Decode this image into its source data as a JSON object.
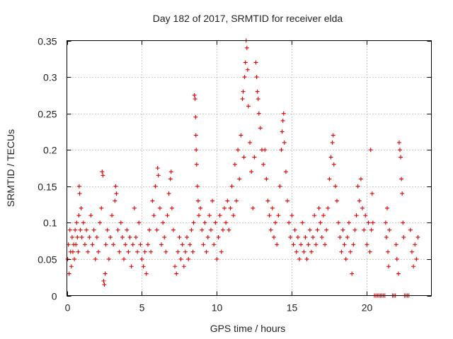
{
  "chart_data": {
    "type": "scatter",
    "title": "Day 182 of 2017, SRMTID for receiver elda",
    "xlabel": "GPS time / hours",
    "ylabel": "SRMTID / TECUs",
    "xlim": [
      0,
      24.3
    ],
    "ylim": [
      0,
      0.35
    ],
    "x_ticks": [
      0,
      5,
      10,
      15,
      20
    ],
    "x_tick_labels": [
      "0",
      "5",
      "10",
      "15",
      "20"
    ],
    "y_ticks": [
      0,
      0.05,
      0.1,
      0.15,
      0.2,
      0.25,
      0.3,
      0.35
    ],
    "y_tick_labels": [
      "0",
      "0.05",
      "0.1",
      "0.15",
      "0.2",
      "0.25",
      "0.3",
      "0.35"
    ],
    "grid": true,
    "marker": "+",
    "series_color": "#e00000",
    "series": [
      {
        "name": "SRMTID",
        "points": [
          [
            0.05,
            0.05
          ],
          [
            0.1,
            0.07
          ],
          [
            0.15,
            0.03
          ],
          [
            0.2,
            0.09
          ],
          [
            0.25,
            0.06
          ],
          [
            0.3,
            0.04
          ],
          [
            0.35,
            0.08
          ],
          [
            0.4,
            0.06
          ],
          [
            0.45,
            0.07
          ],
          [
            0.5,
            0.05
          ],
          [
            0.55,
            0.09
          ],
          [
            0.6,
            0.07
          ],
          [
            0.65,
            0.1
          ],
          [
            0.7,
            0.08
          ],
          [
            0.75,
            0.06
          ],
          [
            0.8,
            0.11
          ],
          [
            0.82,
            0.15
          ],
          [
            0.85,
            0.14
          ],
          [
            0.9,
            0.09
          ],
          [
            0.95,
            0.12
          ],
          [
            1.0,
            0.08
          ],
          [
            1.1,
            0.1
          ],
          [
            1.2,
            0.07
          ],
          [
            1.3,
            0.09
          ],
          [
            1.4,
            0.06
          ],
          [
            1.5,
            0.08
          ],
          [
            1.6,
            0.11
          ],
          [
            1.7,
            0.07
          ],
          [
            1.8,
            0.09
          ],
          [
            1.9,
            0.05
          ],
          [
            2.0,
            0.08
          ],
          [
            2.1,
            0.06
          ],
          [
            2.2,
            0.1
          ],
          [
            2.3,
            0.12
          ],
          [
            2.35,
            0.17
          ],
          [
            2.4,
            0.165
          ],
          [
            2.45,
            0.02
          ],
          [
            2.5,
            0.015
          ],
          [
            2.55,
            0.03
          ],
          [
            2.6,
            0.07
          ],
          [
            2.7,
            0.09
          ],
          [
            2.8,
            0.05
          ],
          [
            2.9,
            0.08
          ],
          [
            3.0,
            0.11
          ],
          [
            3.1,
            0.07
          ],
          [
            3.2,
            0.13
          ],
          [
            3.25,
            0.15
          ],
          [
            3.3,
            0.14
          ],
          [
            3.4,
            0.09
          ],
          [
            3.5,
            0.06
          ],
          [
            3.6,
            0.1
          ],
          [
            3.7,
            0.08
          ],
          [
            3.8,
            0.05
          ],
          [
            3.9,
            0.07
          ],
          [
            4.0,
            0.09
          ],
          [
            4.1,
            0.06
          ],
          [
            4.2,
            0.08
          ],
          [
            4.3,
            0.04
          ],
          [
            4.4,
            0.07
          ],
          [
            4.5,
            0.12
          ],
          [
            4.6,
            0.08
          ],
          [
            4.7,
            0.06
          ],
          [
            4.8,
            0.1
          ],
          [
            4.9,
            0.07
          ],
          [
            5.0,
            0.05
          ],
          [
            5.1,
            0.04
          ],
          [
            5.2,
            0.06
          ],
          [
            5.3,
            0.03
          ],
          [
            5.4,
            0.07
          ],
          [
            5.5,
            0.09
          ],
          [
            5.6,
            0.06
          ],
          [
            5.7,
            0.13
          ],
          [
            5.8,
            0.11
          ],
          [
            5.9,
            0.15
          ],
          [
            6.0,
            0.09
          ],
          [
            6.05,
            0.175
          ],
          [
            6.1,
            0.165
          ],
          [
            6.2,
            0.12
          ],
          [
            6.3,
            0.07
          ],
          [
            6.4,
            0.1
          ],
          [
            6.5,
            0.08
          ],
          [
            6.6,
            0.06
          ],
          [
            6.7,
            0.11
          ],
          [
            6.8,
            0.14
          ],
          [
            6.9,
            0.16
          ],
          [
            6.95,
            0.17
          ],
          [
            7.0,
            0.12
          ],
          [
            7.1,
            0.09
          ],
          [
            7.2,
            0.04
          ],
          [
            7.3,
            0.03
          ],
          [
            7.4,
            0.06
          ],
          [
            7.5,
            0.08
          ],
          [
            7.6,
            0.05
          ],
          [
            7.7,
            0.07
          ],
          [
            7.8,
            0.04
          ],
          [
            7.9,
            0.06
          ],
          [
            8.0,
            0.08
          ],
          [
            8.1,
            0.05
          ],
          [
            8.2,
            0.07
          ],
          [
            8.3,
            0.09
          ],
          [
            8.4,
            0.06
          ],
          [
            8.45,
            0.1
          ],
          [
            8.5,
            0.275
          ],
          [
            8.55,
            0.27
          ],
          [
            8.58,
            0.245
          ],
          [
            8.6,
            0.22
          ],
          [
            8.62,
            0.2
          ],
          [
            8.65,
            0.18
          ],
          [
            8.7,
            0.15
          ],
          [
            8.75,
            0.13
          ],
          [
            8.8,
            0.11
          ],
          [
            8.9,
            0.12
          ],
          [
            9.0,
            0.09
          ],
          [
            9.1,
            0.07
          ],
          [
            9.2,
            0.1
          ],
          [
            9.3,
            0.06
          ],
          [
            9.4,
            0.08
          ],
          [
            9.5,
            0.11
          ],
          [
            9.6,
            0.09
          ],
          [
            9.7,
            0.13
          ],
          [
            9.8,
            0.07
          ],
          [
            9.9,
            0.1
          ],
          [
            10.0,
            0.05
          ],
          [
            10.1,
            0.08
          ],
          [
            10.2,
            0.11
          ],
          [
            10.3,
            0.06
          ],
          [
            10.4,
            0.09
          ],
          [
            10.5,
            0.12
          ],
          [
            10.6,
            0.1
          ],
          [
            10.7,
            0.13
          ],
          [
            10.8,
            0.09
          ],
          [
            10.9,
            0.12
          ],
          [
            11.0,
            0.15
          ],
          [
            11.1,
            0.11
          ],
          [
            11.2,
            0.18
          ],
          [
            11.3,
            0.13
          ],
          [
            11.4,
            0.2
          ],
          [
            11.5,
            0.16
          ],
          [
            11.6,
            0.22
          ],
          [
            11.7,
            0.27
          ],
          [
            11.75,
            0.28
          ],
          [
            11.8,
            0.19
          ],
          [
            11.85,
            0.3
          ],
          [
            11.9,
            0.32
          ],
          [
            11.95,
            0.35
          ],
          [
            12.0,
            0.34
          ],
          [
            12.05,
            0.31
          ],
          [
            12.1,
            0.26
          ],
          [
            12.2,
            0.21
          ],
          [
            12.3,
            0.17
          ],
          [
            12.4,
            0.12
          ],
          [
            12.5,
            0.19
          ],
          [
            12.6,
            0.32
          ],
          [
            12.65,
            0.3
          ],
          [
            12.7,
            0.28
          ],
          [
            12.75,
            0.27
          ],
          [
            12.8,
            0.25
          ],
          [
            12.9,
            0.23
          ],
          [
            13.0,
            0.2
          ],
          [
            13.1,
            0.18
          ],
          [
            13.2,
            0.2
          ],
          [
            13.3,
            0.16
          ],
          [
            13.4,
            0.13
          ],
          [
            13.5,
            0.11
          ],
          [
            13.6,
            0.09
          ],
          [
            13.7,
            0.12
          ],
          [
            13.8,
            0.08
          ],
          [
            13.9,
            0.1
          ],
          [
            14.0,
            0.07
          ],
          [
            14.1,
            0.11
          ],
          [
            14.2,
            0.15
          ],
          [
            14.3,
            0.2
          ],
          [
            14.35,
            0.225
          ],
          [
            14.4,
            0.24
          ],
          [
            14.45,
            0.25
          ],
          [
            14.5,
            0.21
          ],
          [
            14.6,
            0.17
          ],
          [
            14.7,
            0.13
          ],
          [
            14.8,
            0.1
          ],
          [
            14.9,
            0.08
          ],
          [
            15.0,
            0.11
          ],
          [
            15.1,
            0.07
          ],
          [
            15.2,
            0.09
          ],
          [
            15.3,
            0.06
          ],
          [
            15.4,
            0.08
          ],
          [
            15.5,
            0.05
          ],
          [
            15.6,
            0.07
          ],
          [
            15.7,
            0.1
          ],
          [
            15.8,
            0.06
          ],
          [
            15.9,
            0.08
          ],
          [
            16.0,
            0.05
          ],
          [
            16.1,
            0.07
          ],
          [
            16.2,
            0.09
          ],
          [
            16.3,
            0.06
          ],
          [
            16.4,
            0.08
          ],
          [
            16.5,
            0.11
          ],
          [
            16.6,
            0.07
          ],
          [
            16.7,
            0.09
          ],
          [
            16.8,
            0.12
          ],
          [
            16.9,
            0.1
          ],
          [
            17.0,
            0.08
          ],
          [
            17.1,
            0.11
          ],
          [
            17.2,
            0.07
          ],
          [
            17.3,
            0.09
          ],
          [
            17.4,
            0.12
          ],
          [
            17.5,
            0.16
          ],
          [
            17.6,
            0.19
          ],
          [
            17.7,
            0.21
          ],
          [
            17.75,
            0.22
          ],
          [
            17.8,
            0.18
          ],
          [
            17.9,
            0.15
          ],
          [
            18.0,
            0.13
          ],
          [
            18.1,
            0.1
          ],
          [
            18.2,
            0.08
          ],
          [
            18.3,
            0.06
          ],
          [
            18.4,
            0.09
          ],
          [
            18.5,
            0.07
          ],
          [
            18.6,
            0.05
          ],
          [
            18.7,
            0.08
          ],
          [
            18.8,
            0.1
          ],
          [
            18.9,
            0.06
          ],
          [
            19.0,
            0.03
          ],
          [
            19.1,
            0.07
          ],
          [
            19.2,
            0.09
          ],
          [
            19.3,
            0.11
          ],
          [
            19.4,
            0.15
          ],
          [
            19.5,
            0.13
          ],
          [
            19.6,
            0.16
          ],
          [
            19.7,
            0.12
          ],
          [
            19.8,
            0.09
          ],
          [
            19.9,
            0.11
          ],
          [
            20.0,
            0.07
          ],
          [
            20.1,
            0.1
          ],
          [
            20.2,
            0.06
          ],
          [
            20.25,
            0.2
          ],
          [
            20.3,
            0.09
          ],
          [
            20.35,
            0.14
          ],
          [
            20.4,
            0.1
          ],
          [
            20.5,
            0.0
          ],
          [
            20.6,
            0.0
          ],
          [
            20.7,
            0.0
          ],
          [
            20.8,
            0.0
          ],
          [
            20.9,
            0.0
          ],
          [
            21.0,
            0.0
          ],
          [
            21.1,
            0.0
          ],
          [
            21.2,
            0.0
          ],
          [
            21.25,
            0.1
          ],
          [
            21.3,
            0.08
          ],
          [
            21.35,
            0.12
          ],
          [
            21.4,
            0.06
          ],
          [
            21.45,
            0.04
          ],
          [
            21.5,
            0.09
          ],
          [
            21.7,
            0.0
          ],
          [
            21.8,
            0.0
          ],
          [
            21.9,
            0.0
          ],
          [
            21.95,
            0.07
          ],
          [
            22.0,
            0.05
          ],
          [
            22.1,
            0.03
          ],
          [
            22.15,
            0.21
          ],
          [
            22.2,
            0.2
          ],
          [
            22.25,
            0.19
          ],
          [
            22.3,
            0.16
          ],
          [
            22.35,
            0.14
          ],
          [
            22.4,
            0.1
          ],
          [
            22.45,
            0.08
          ],
          [
            22.5,
            0.0
          ],
          [
            22.6,
            0.0
          ],
          [
            22.7,
            0.0
          ],
          [
            22.8,
            0.0
          ],
          [
            22.9,
            0.09
          ],
          [
            23.0,
            0.06
          ],
          [
            23.1,
            0.04
          ],
          [
            23.2,
            0.07
          ],
          [
            23.3,
            0.05
          ],
          [
            23.4,
            0.08
          ]
        ]
      }
    ]
  }
}
